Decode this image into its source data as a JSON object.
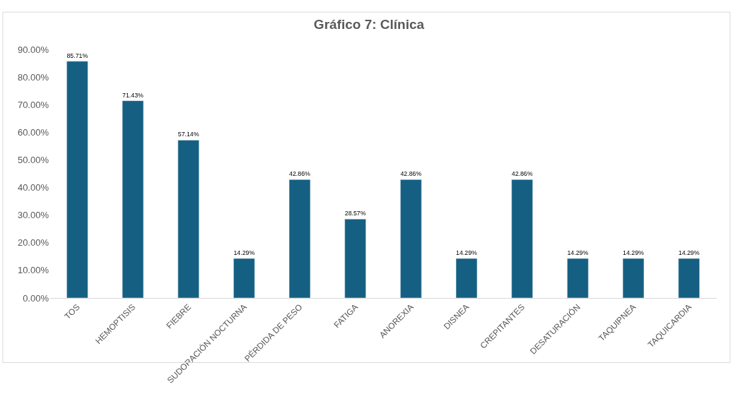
{
  "chart_data": {
    "type": "bar",
    "title": "Gráfico 7: Clínica",
    "categories": [
      "TOS",
      "HEMOPTISIS",
      "FIEBRE",
      "SUDORACIÓN NOCTURNA",
      "PÉRDIDA DE PESO",
      "FATIGA",
      "ANOREXIA",
      "DISNEA",
      "CREPITANTES",
      "DESATURACIÓN",
      "TAQUIPNEA",
      "TAQUICARDIA"
    ],
    "values": [
      85.71,
      71.43,
      57.14,
      14.29,
      42.86,
      28.57,
      42.86,
      14.29,
      42.86,
      14.29,
      14.29,
      14.29
    ],
    "value_labels": [
      "85.71%",
      "71.43%",
      "57.14%",
      "14.29%",
      "42.86%",
      "28.57%",
      "42.86%",
      "14.29%",
      "42.86%",
      "14.29%",
      "14.29%",
      "14.29%"
    ],
    "color": "#156082",
    "ylim": [
      0,
      90
    ],
    "yticks": [
      {
        "value": 0,
        "label": "0.00%"
      },
      {
        "value": 10,
        "label": "10.00%"
      },
      {
        "value": 20,
        "label": "20.00%"
      },
      {
        "value": 30,
        "label": "30.00%"
      },
      {
        "value": 40,
        "label": "40.00%"
      },
      {
        "value": 50,
        "label": "50.00%"
      },
      {
        "value": 60,
        "label": "60.00%"
      },
      {
        "value": 70,
        "label": "70.00%"
      },
      {
        "value": 80,
        "label": "80.00%"
      },
      {
        "value": 90,
        "label": "90.00%"
      }
    ],
    "grid": false,
    "legend": false
  }
}
